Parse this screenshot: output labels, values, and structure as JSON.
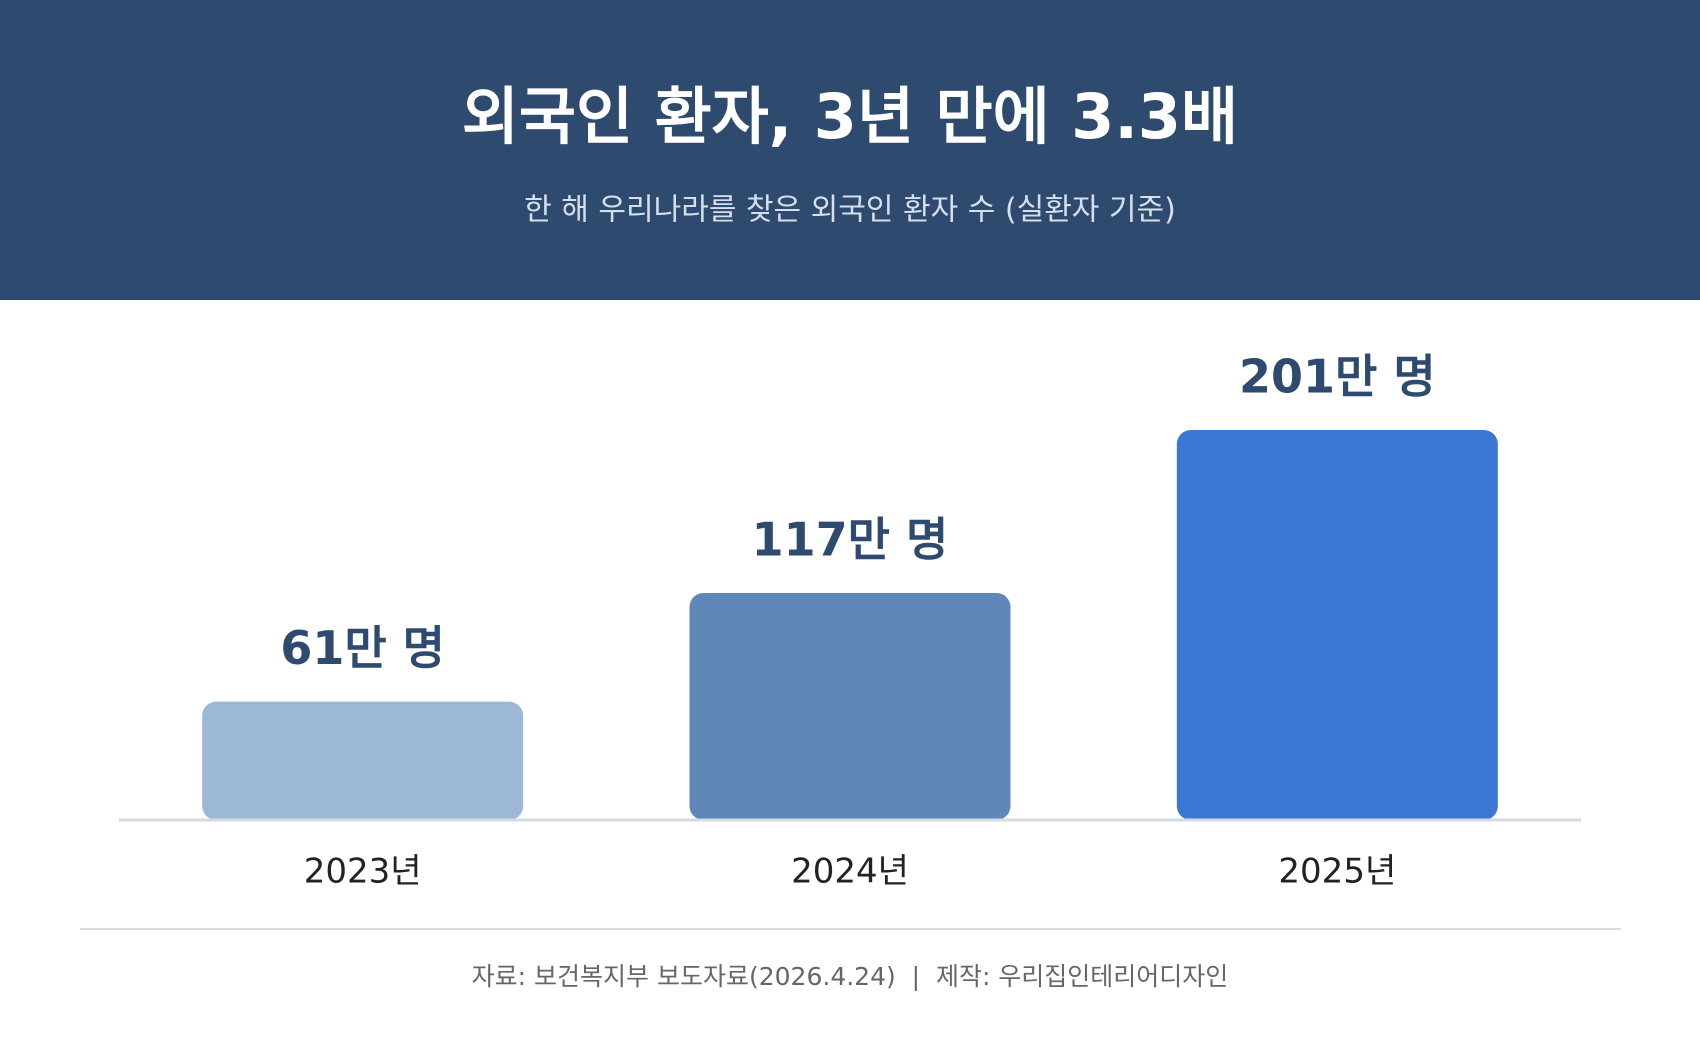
{
  "chart_data": {
    "type": "bar",
    "title": "외국인 환자, 3년 만에 3.3배",
    "subtitle": "한 해 우리나라를 찾은 외국인 환자 수 (실환자 기준)",
    "categories": [
      "2023년",
      "2024년",
      "2025년"
    ],
    "values": [
      61,
      117,
      201
    ],
    "value_labels": [
      "61만 명",
      "117만 명",
      "201만 명"
    ],
    "colors": [
      "#9db7d6",
      "#5f87b8",
      "#3a78d4"
    ],
    "footnote": "자료: 보건복지부 보도자료(2026.4.24)  |  제작: 우리집인테리어디자인"
  }
}
